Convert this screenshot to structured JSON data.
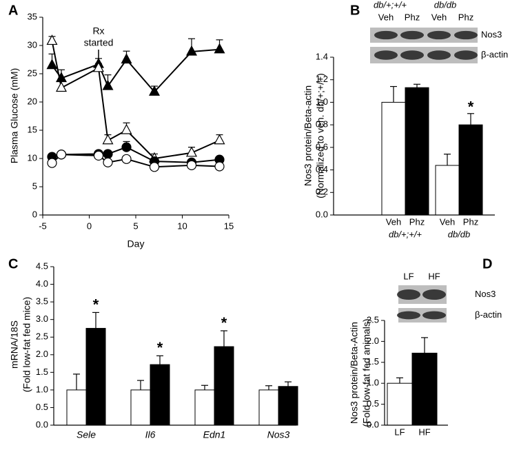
{
  "chart_data": [
    {
      "type": "line",
      "panel_label": "A",
      "x_label": "Day",
      "y_label": "Plasma Glucose (mM)",
      "annotation": {
        "text": [
          "Rx",
          "started"
        ],
        "x": 1
      },
      "x": [
        -4,
        -3,
        1,
        2,
        4,
        7,
        11,
        14
      ],
      "xlim": [
        -5,
        15
      ],
      "xticks": [
        -5,
        0,
        5,
        10,
        15
      ],
      "ylim": [
        0,
        35
      ],
      "yticks": [
        0,
        5,
        10,
        15,
        20,
        25,
        30,
        35
      ],
      "series": [
        {
          "color": "#000000",
          "marker": "triangle",
          "fill": "#000000",
          "values": [
            26.5,
            24.2,
            26.7,
            22.8,
            27.5,
            21.8,
            28.9,
            29.3
          ],
          "errors": [
            2.0,
            1.5,
            1.0,
            2.0,
            1.5,
            1.0,
            2.3,
            1.7
          ]
        },
        {
          "color": "#000000",
          "marker": "triangle",
          "fill": "#ffffff",
          "values": [
            30.8,
            22.5,
            26.0,
            13.2,
            15.0,
            10.0,
            11.0,
            13.2
          ],
          "errors": [
            0.8,
            1.3,
            0.8,
            1.0,
            1.3,
            0.8,
            1.0,
            1.0
          ]
        },
        {
          "color": "#000000",
          "marker": "circle",
          "fill": "#000000",
          "values": [
            10.3,
            10.7,
            10.8,
            10.8,
            12.0,
            9.5,
            9.3,
            9.8
          ],
          "errors": [
            0.5,
            0.5,
            0.5,
            0.5,
            1.0,
            0.5,
            0.5,
            0.5
          ]
        },
        {
          "color": "#000000",
          "marker": "circle",
          "fill": "#ffffff",
          "values": [
            9.2,
            10.7,
            10.5,
            9.3,
            9.9,
            8.5,
            8.8,
            8.6
          ],
          "errors": [
            0.5,
            0.5,
            0.5,
            0.5,
            0.5,
            0.5,
            0.8,
            0.5
          ]
        }
      ]
    },
    {
      "type": "bar",
      "panel_label": "B",
      "y_label": [
        "Nos3 protein/Beta-actin",
        "(Normalized to veh. db/+;+/+)"
      ],
      "categories": [
        "Veh",
        "Phz",
        "Veh",
        "Phz"
      ],
      "group_labels": [
        "db/+;+/+",
        "db/db"
      ],
      "values": [
        1.0,
        1.13,
        0.44,
        0.8
      ],
      "errors": [
        0.14,
        0.03,
        0.1,
        0.1
      ],
      "colors": [
        "#ffffff",
        "#000000",
        "#ffffff",
        "#000000"
      ],
      "markers": [
        null,
        null,
        null,
        "*"
      ],
      "ylim": [
        0,
        1.4
      ],
      "yticks": [
        {
          "value": 0,
          "label": "0.0"
        },
        0.2,
        0.4,
        0.6,
        0.8,
        {
          "value": 1,
          "label": "1.0"
        },
        1.2,
        1.4
      ],
      "blot": {
        "group_labels": [
          "db/+;+/+",
          "db/db"
        ],
        "lane_labels": [
          "Veh",
          "Phz",
          "Veh",
          "Phz"
        ],
        "band_labels": [
          "Nos3",
          "β-actin"
        ]
      }
    },
    {
      "type": "grouped_bar",
      "panel_label": "C",
      "y_label": [
        "mRNA/18S",
        "(Fold low-fat fed mice)"
      ],
      "categories": [
        "Sele",
        "Il6",
        "Edn1",
        "Nos3"
      ],
      "category_style": "italic",
      "series": [
        {
          "color": "#ffffff",
          "values": [
            1.0,
            1.0,
            1.0,
            1.0
          ],
          "errors": [
            0.45,
            0.27,
            0.13,
            0.12
          ]
        },
        {
          "color": "#000000",
          "values": [
            2.75,
            1.72,
            2.23,
            1.1
          ],
          "errors": [
            0.45,
            0.25,
            0.45,
            0.13
          ],
          "markers": [
            "*",
            "*",
            "*",
            null
          ]
        }
      ],
      "ylim": [
        0,
        4.5
      ],
      "yticks": [
        {
          "value": 0,
          "label": "0.0"
        },
        0.5,
        {
          "value": 1,
          "label": "1.0"
        },
        1.5,
        {
          "value": 2,
          "label": "2.0"
        },
        2.5,
        {
          "value": 3,
          "label": "3.0"
        },
        3.5,
        {
          "value": 4,
          "label": "4.0"
        },
        4.5
      ]
    },
    {
      "type": "bar",
      "panel_label": "D",
      "y_label": [
        "Nos3 protein/Beta-Actin",
        "(Fold low-fat fed animals)"
      ],
      "categories": [
        "LF",
        "HF"
      ],
      "values": [
        1.0,
        1.72
      ],
      "errors": [
        0.13,
        0.37
      ],
      "colors": [
        "#ffffff",
        "#000000"
      ],
      "ylim": [
        0,
        2.5
      ],
      "yticks": [
        {
          "value": 0,
          "label": "0.0"
        },
        0.5,
        {
          "value": 1,
          "label": "1.0"
        },
        1.5,
        {
          "value": 2,
          "label": "2.0"
        },
        2.5
      ],
      "blot": {
        "lane_labels": [
          "LF",
          "HF"
        ],
        "band_labels": [
          "Nos3",
          "β-actin"
        ]
      }
    }
  ]
}
